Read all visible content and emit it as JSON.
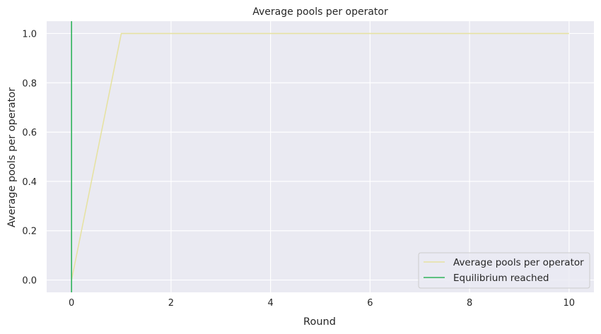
{
  "chart_data": {
    "type": "line",
    "title": "Average pools per operator",
    "xlabel": "Round",
    "ylabel": "Average pools per operator",
    "xlim": [
      -0.5,
      10.5
    ],
    "ylim": [
      -0.05,
      1.05
    ],
    "xticks": [
      0,
      2,
      4,
      6,
      8,
      10
    ],
    "xtick_labels": [
      "0",
      "2",
      "4",
      "6",
      "8",
      "10"
    ],
    "yticks": [
      0.0,
      0.2,
      0.4,
      0.6,
      0.8,
      1.0
    ],
    "ytick_labels": [
      "0.0",
      "0.2",
      "0.4",
      "0.6",
      "0.8",
      "1.0"
    ],
    "grid": true,
    "legend_position": "bottom-right",
    "series": [
      {
        "name": "Average pools per operator",
        "color": "#e6e2a3",
        "x": [
          0,
          1,
          2,
          3,
          4,
          5,
          6,
          7,
          8,
          9,
          10
        ],
        "y": [
          0.0,
          1.0,
          1.0,
          1.0,
          1.0,
          1.0,
          1.0,
          1.0,
          1.0,
          1.0,
          1.0
        ]
      }
    ],
    "vlines": [
      {
        "name": "Equilibrium reached",
        "color": "#2fb35b",
        "x": 0
      }
    ],
    "background_color": "#eaeaf2",
    "grid_color": "#ffffff"
  }
}
